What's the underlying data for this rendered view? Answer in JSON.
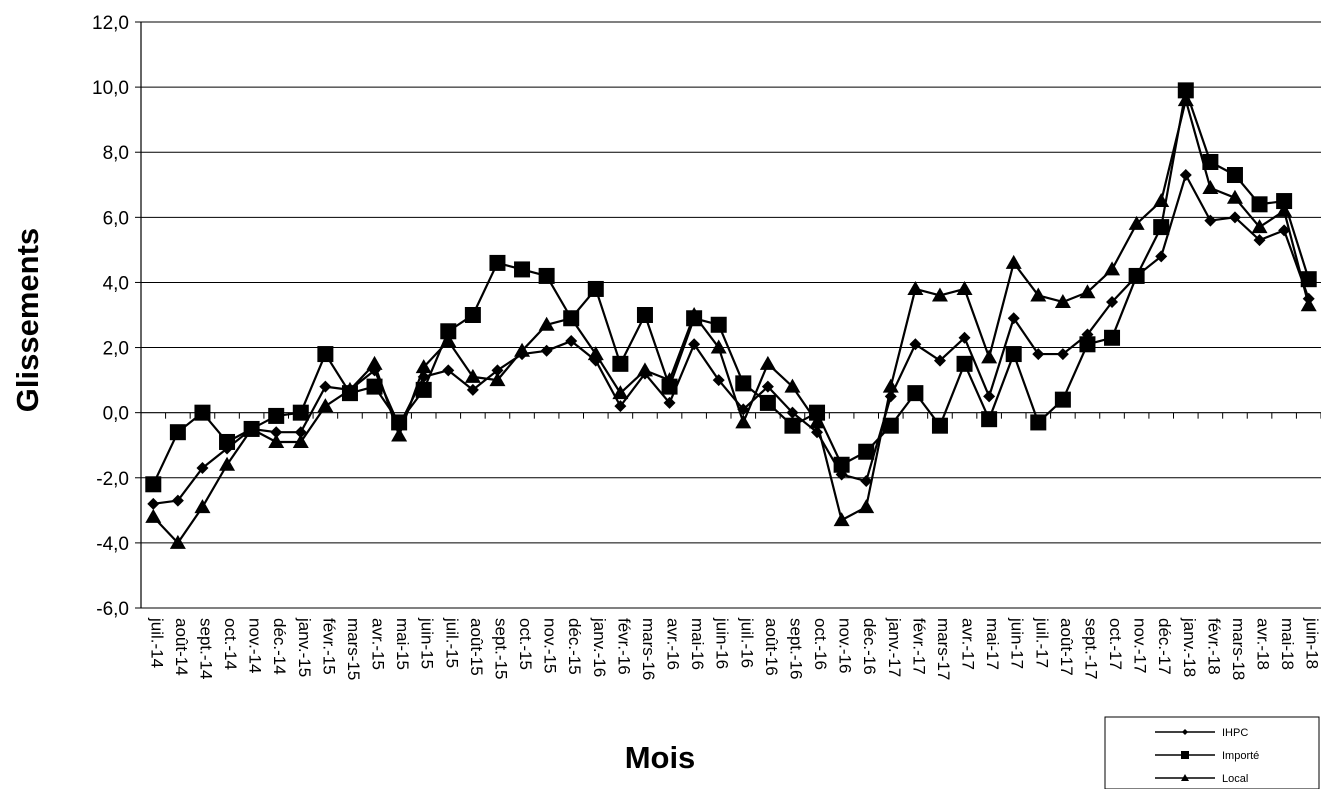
{
  "chart_data": {
    "type": "line",
    "title": "",
    "xlabel": "Mois",
    "ylabel": "Glissements",
    "ylim": [
      -6,
      12
    ],
    "yticks": [
      -6,
      -4,
      -2,
      0,
      2,
      4,
      6,
      8,
      10,
      12
    ],
    "ytick_labels": [
      "-6,0",
      "-4,0",
      "-2,0",
      "0,0",
      "2,0",
      "4,0",
      "6,0",
      "8,0",
      "10,0",
      "12,0"
    ],
    "grid": "horizontal",
    "legend_position": "bottom-right",
    "categories": [
      "juil.-14",
      "août-14",
      "sept.-14",
      "oct.-14",
      "nov.-14",
      "déc.-14",
      "janv.-15",
      "févr.-15",
      "mars-15",
      "avr.-15",
      "mai-15",
      "juin-15",
      "juil.-15",
      "août-15",
      "sept.-15",
      "oct.-15",
      "nov.-15",
      "déc.-15",
      "janv.-16",
      "févr.-16",
      "mars-16",
      "avr.-16",
      "mai-16",
      "juin-16",
      "juil.-16",
      "août-16",
      "sept.-16",
      "oct.-16",
      "nov.-16",
      "déc.-16",
      "janv.-17",
      "févr.-17",
      "mars-17",
      "avr.-17",
      "mai-17",
      "juin-17",
      "juil.-17",
      "août-17",
      "sept.-17",
      "oct.-17",
      "nov.-17",
      "déc.-17",
      "janv.-18",
      "févr.-18",
      "mars-18",
      "avr.-18",
      "mai-18",
      "juin-18"
    ],
    "series": [
      {
        "name": "IHPC",
        "marker": "diamond",
        "values": [
          -2.8,
          -2.7,
          -1.7,
          -1.1,
          -0.5,
          -0.6,
          -0.6,
          0.8,
          0.7,
          1.3,
          -0.4,
          1.1,
          1.3,
          0.7,
          1.3,
          1.8,
          1.9,
          2.2,
          1.6,
          0.2,
          1.2,
          0.3,
          2.1,
          1.0,
          0.1,
          0.8,
          0.0,
          -0.6,
          -1.9,
          -2.1,
          0.5,
          2.1,
          1.6,
          2.3,
          0.5,
          2.9,
          1.8,
          1.8,
          2.4,
          3.4,
          4.2,
          4.8,
          7.3,
          5.9,
          6.0,
          5.3,
          5.6,
          3.5
        ]
      },
      {
        "name": "Importé",
        "marker": "square",
        "values": [
          -2.2,
          -0.6,
          0.0,
          -0.9,
          -0.5,
          -0.1,
          0.0,
          1.8,
          0.6,
          0.8,
          -0.3,
          0.7,
          2.5,
          3.0,
          4.6,
          4.4,
          4.2,
          2.9,
          3.8,
          1.5,
          3.0,
          0.8,
          2.9,
          2.7,
          0.9,
          0.3,
          -0.4,
          0.0,
          -1.6,
          -1.2,
          -0.4,
          0.6,
          -0.4,
          1.5,
          -0.2,
          1.8,
          -0.3,
          0.4,
          2.1,
          2.3,
          4.2,
          5.7,
          9.9,
          7.7,
          7.3,
          6.4,
          6.5,
          4.1
        ]
      },
      {
        "name": "Local",
        "marker": "triangle",
        "values": [
          -3.2,
          -4.0,
          -2.9,
          -1.6,
          -0.5,
          -0.9,
          -0.9,
          0.2,
          0.7,
          1.5,
          -0.7,
          1.4,
          2.2,
          1.1,
          1.0,
          1.9,
          2.7,
          2.9,
          1.8,
          0.6,
          1.3,
          1.0,
          3.0,
          2.0,
          -0.3,
          1.5,
          0.8,
          -0.3,
          -3.3,
          -2.9,
          0.8,
          3.8,
          3.6,
          3.8,
          1.7,
          4.6,
          3.6,
          3.4,
          3.7,
          4.4,
          5.8,
          6.5,
          9.6,
          6.9,
          6.6,
          5.7,
          6.2,
          3.3
        ]
      }
    ]
  }
}
